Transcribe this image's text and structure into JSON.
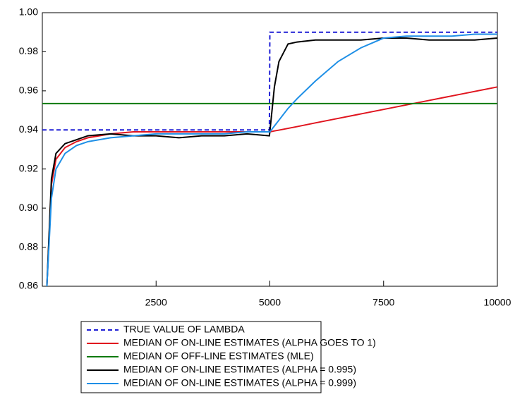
{
  "chart_data": {
    "type": "line",
    "x": [
      0,
      100,
      200,
      300,
      500,
      750,
      1000,
      1500,
      2000,
      2500,
      3000,
      3500,
      4000,
      4500,
      4990,
      5000,
      5100,
      5200,
      5400,
      5600,
      6000,
      6500,
      7000,
      7500,
      8000,
      8500,
      9000,
      9500,
      10000
    ],
    "series": [
      {
        "name": "TRUE VALUE OF LAMBDA",
        "color": "#1f1fd6",
        "line_style": "dashed",
        "values": [
          0.94,
          0.94,
          0.94,
          0.94,
          0.94,
          0.94,
          0.94,
          0.94,
          0.94,
          0.94,
          0.94,
          0.94,
          0.94,
          0.94,
          0.94,
          0.99,
          0.99,
          0.99,
          0.99,
          0.99,
          0.99,
          0.99,
          0.99,
          0.99,
          0.99,
          0.99,
          0.99,
          0.99,
          0.99
        ]
      },
      {
        "name": "MEDIAN OF ON-LINE ESTIMATES (ALPHA GOES TO 1)",
        "color": "#e0141e",
        "line_style": "solid",
        "values": [
          null,
          0.86,
          0.912,
          0.925,
          0.931,
          0.934,
          0.936,
          0.938,
          0.939,
          0.939,
          0.939,
          0.939,
          0.939,
          0.939,
          0.939,
          0.939,
          0.9395,
          0.9399,
          0.9408,
          0.9417,
          0.9436,
          0.9459,
          0.9482,
          0.9505,
          0.9528,
          0.9551,
          0.9574,
          0.9597,
          0.962
        ]
      },
      {
        "name": "MEDIAN OF OFF-LINE ESTIMATES (MLE)",
        "color": "#0f7a0f",
        "line_style": "solid",
        "values": [
          0.9535,
          0.9535,
          0.9535,
          0.9535,
          0.9535,
          0.9535,
          0.9535,
          0.9535,
          0.9535,
          0.9535,
          0.9535,
          0.9535,
          0.9535,
          0.9535,
          0.9535,
          0.9535,
          0.9535,
          0.9535,
          0.9535,
          0.9535,
          0.9535,
          0.9535,
          0.9535,
          0.9535,
          0.9535,
          0.9535,
          0.9535,
          0.9535,
          0.9535
        ]
      },
      {
        "name": "MEDIAN OF ON-LINE ESTIMATES (ALPHA = 0.995)",
        "color": "#000000",
        "line_style": "solid",
        "values": [
          null,
          0.86,
          0.915,
          0.928,
          0.933,
          0.935,
          0.937,
          0.938,
          0.937,
          0.937,
          0.936,
          0.937,
          0.937,
          0.938,
          0.937,
          0.939,
          0.962,
          0.975,
          0.984,
          0.985,
          0.986,
          0.986,
          0.986,
          0.987,
          0.987,
          0.986,
          0.986,
          0.986,
          0.987
        ]
      },
      {
        "name": "MEDIAN OF ON-LINE ESTIMATES (ALPHA = 0.999)",
        "color": "#1e8fe6",
        "line_style": "solid",
        "values": [
          null,
          0.86,
          0.905,
          0.92,
          0.928,
          0.932,
          0.934,
          0.936,
          0.937,
          0.938,
          0.938,
          0.938,
          0.938,
          0.939,
          0.939,
          0.939,
          0.942,
          0.945,
          0.951,
          0.956,
          0.965,
          0.975,
          0.982,
          0.987,
          0.988,
          0.988,
          0.988,
          0.989,
          0.989
        ]
      }
    ],
    "xlim": [
      0,
      10000
    ],
    "xticks": [
      2500,
      5000,
      7500,
      10000
    ],
    "ylim": [
      0.86,
      1.0
    ],
    "yticks": [
      0.86,
      0.88,
      {
        "value": 0.9,
        "label": "0.90"
      },
      0.92,
      0.94,
      0.96,
      0.98,
      {
        "value": 1.0,
        "label": "1.00"
      }
    ],
    "legend": "bottom"
  }
}
